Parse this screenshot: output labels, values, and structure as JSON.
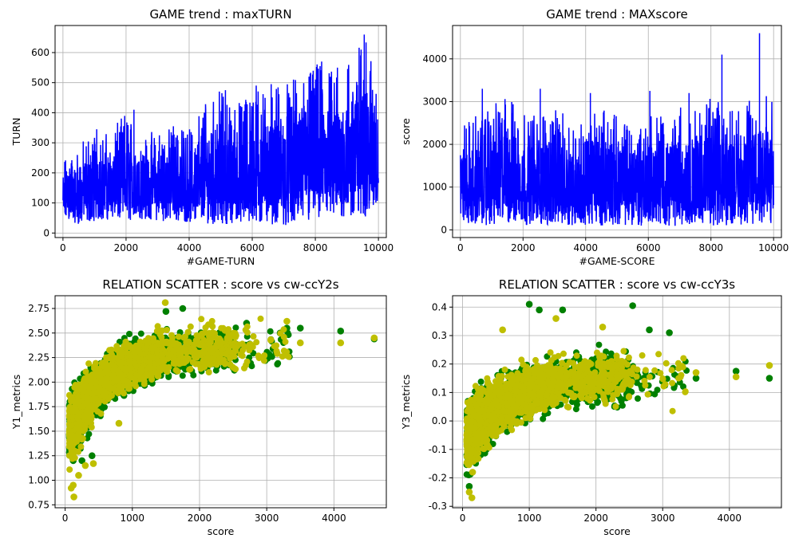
{
  "chart_data": [
    {
      "type": "line",
      "title": "GAME trend : maxTURN",
      "xlabel": "#GAME-TURN",
      "ylabel": "TURN",
      "xlim": [
        -250,
        10250
      ],
      "ylim": [
        -15,
        690
      ],
      "xticks": [
        0,
        2000,
        4000,
        6000,
        8000,
        10000
      ],
      "yticks": [
        0,
        100,
        200,
        300,
        400,
        500,
        600
      ],
      "grid": true,
      "color": "#0000ff",
      "series": [
        {
          "x": [
            0,
            500,
            1000,
            1500,
            2000,
            2500,
            3000,
            3500,
            4000,
            4500,
            5000,
            5500,
            6000,
            6500,
            7000,
            7500,
            8000,
            8500,
            9000,
            9500,
            10000
          ],
          "y_low": [
            45,
            30,
            40,
            45,
            40,
            45,
            40,
            40,
            35,
            30,
            30,
            30,
            25,
            30,
            25,
            30,
            35,
            40,
            50,
            45,
            90
          ],
          "y_high": [
            245,
            300,
            345,
            330,
            410,
            335,
            345,
            355,
            345,
            445,
            475,
            430,
            500,
            495,
            500,
            520,
            570,
            550,
            570,
            660,
            540
          ]
        }
      ],
      "spikes": [
        {
          "x": 1070,
          "y": 345
        },
        {
          "x": 2250,
          "y": 410
        },
        {
          "x": 3500,
          "y": 355
        },
        {
          "x": 5150,
          "y": 475
        },
        {
          "x": 6600,
          "y": 495
        },
        {
          "x": 7800,
          "y": 520
        },
        {
          "x": 8200,
          "y": 570
        },
        {
          "x": 8700,
          "y": 550
        },
        {
          "x": 9550,
          "y": 660
        }
      ]
    },
    {
      "type": "line",
      "title": "GAME trend : MAXscore",
      "xlabel": "#GAME-SCORE",
      "ylabel": "score",
      "xlim": [
        -250,
        10250
      ],
      "ylim": [
        -180,
        4780
      ],
      "xticks": [
        0,
        2000,
        4000,
        6000,
        8000,
        10000
      ],
      "yticks": [
        0,
        1000,
        2000,
        3000,
        4000
      ],
      "grid": true,
      "color": "#0000ff",
      "series": [
        {
          "x": [
            0,
            500,
            1000,
            1500,
            2000,
            2500,
            3000,
            3500,
            4000,
            4500,
            5000,
            5500,
            6000,
            6500,
            7000,
            7500,
            8000,
            8500,
            9000,
            9500,
            10000
          ],
          "y_low": [
            150,
            120,
            100,
            130,
            110,
            120,
            100,
            110,
            100,
            100,
            110,
            90,
            100,
            100,
            90,
            110,
            100,
            100,
            120,
            100,
            120
          ],
          "y_high": [
            2500,
            2700,
            2900,
            3150,
            2800,
            2700,
            2900,
            2600,
            2500,
            2900,
            2700,
            2600,
            2800,
            2700,
            2900,
            2800,
            3100,
            2900,
            2800,
            3300,
            3000
          ]
        }
      ],
      "spikes": [
        {
          "x": 700,
          "y": 3300
        },
        {
          "x": 2550,
          "y": 3300
        },
        {
          "x": 4150,
          "y": 3200
        },
        {
          "x": 6050,
          "y": 3250
        },
        {
          "x": 7300,
          "y": 3200
        },
        {
          "x": 8350,
          "y": 4100
        },
        {
          "x": 9550,
          "y": 4600
        }
      ]
    },
    {
      "type": "scatter",
      "title": "RELATION SCATTER : score vs cw-ccY2s",
      "xlabel": "score",
      "ylabel": "Y1_metrics",
      "xlim": [
        -150,
        4780
      ],
      "ylim": [
        0.72,
        2.88
      ],
      "xticks": [
        0,
        1000,
        2000,
        3000,
        4000
      ],
      "yticks": [
        0.75,
        1.0,
        1.25,
        1.5,
        1.75,
        2.0,
        2.25,
        2.5,
        2.75
      ],
      "grid": true,
      "series": [
        {
          "name": "",
          "color": "#008000",
          "outliers": [
            [
              3500,
              2.55
            ],
            [
              4100,
              2.52
            ],
            [
              4600,
              2.44
            ],
            [
              3200,
              2.5
            ],
            [
              3300,
              2.55
            ],
            [
              2700,
              2.6
            ],
            [
              1750,
              2.75
            ],
            [
              1500,
              2.72
            ],
            [
              120,
              1.2
            ],
            [
              250,
              1.2
            ],
            [
              400,
              1.25
            ]
          ]
        },
        {
          "name": "",
          "color": "#bfbf00",
          "outliers": [
            [
              1490,
              2.81
            ],
            [
              3500,
              2.4
            ],
            [
              4100,
              2.4
            ],
            [
              4600,
              2.45
            ],
            [
              3300,
              2.62
            ],
            [
              120,
              0.95
            ],
            [
              90,
              0.92
            ],
            [
              130,
              0.83
            ],
            [
              200,
              1.05
            ],
            [
              300,
              1.15
            ],
            [
              420,
              1.17
            ],
            [
              800,
              1.58
            ]
          ]
        }
      ]
    },
    {
      "type": "scatter",
      "title": "RELATION SCATTER : score vs cw-ccY3s",
      "xlabel": "score",
      "ylabel": "Y3_metrics",
      "xlim": [
        -150,
        4780
      ],
      "ylim": [
        -0.305,
        0.44
      ],
      "xticks": [
        0,
        1000,
        2000,
        3000,
        4000
      ],
      "yticks": [
        -0.3,
        -0.2,
        -0.1,
        0.0,
        0.1,
        0.2,
        0.3,
        0.4
      ],
      "grid": true,
      "series": [
        {
          "name": "",
          "color": "#008000",
          "outliers": [
            [
              1000,
              0.41
            ],
            [
              1150,
              0.39
            ],
            [
              1500,
              0.39
            ],
            [
              2550,
              0.405
            ],
            [
              100,
              -0.23
            ],
            [
              3500,
              0.15
            ],
            [
              4100,
              0.175
            ],
            [
              4600,
              0.15
            ],
            [
              2800,
              0.32
            ],
            [
              3100,
              0.31
            ]
          ]
        },
        {
          "name": "",
          "color": "#bfbf00",
          "outliers": [
            [
              100,
              -0.25
            ],
            [
              140,
              -0.27
            ],
            [
              150,
              -0.18
            ],
            [
              3500,
              0.17
            ],
            [
              4100,
              0.155
            ],
            [
              4600,
              0.195
            ],
            [
              1400,
              0.36
            ],
            [
              2100,
              0.33
            ],
            [
              600,
              0.32
            ]
          ]
        }
      ]
    }
  ]
}
